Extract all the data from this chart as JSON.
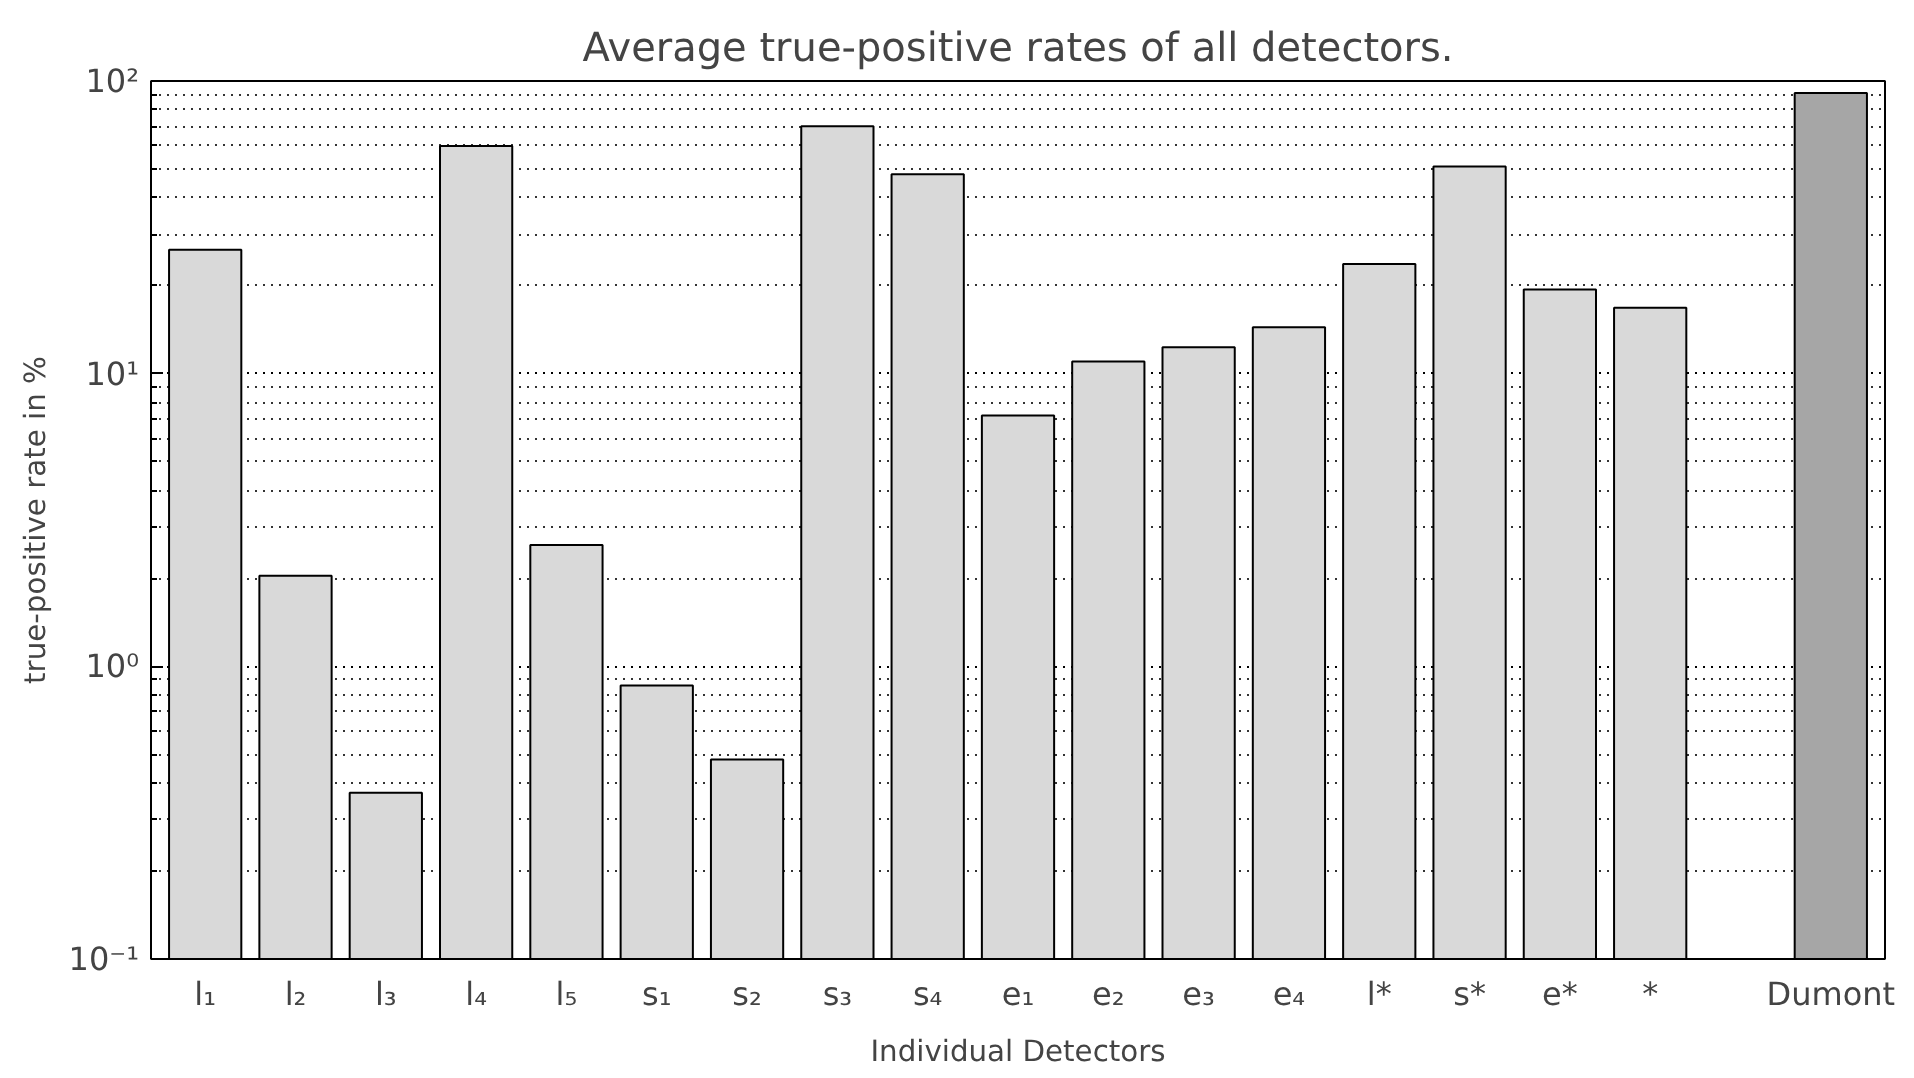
{
  "chart_data": {
    "type": "bar",
    "title": "Average true-positive rates of all detectors.",
    "xlabel": "Individual Detectors",
    "ylabel": "true-positive rate in %",
    "categories": [
      "l₁",
      "l₂",
      "l₃",
      "l₄",
      "l₅",
      "s₁",
      "s₂",
      "s₃",
      "s₄",
      "e₁",
      "e₂",
      "e₃",
      "e₄",
      "l*",
      "s*",
      "e*",
      "*",
      null,
      "Dumont"
    ],
    "values": [
      26.5,
      2.04,
      0.37,
      60,
      2.6,
      0.86,
      0.48,
      70,
      48,
      7.2,
      11,
      12.3,
      14.4,
      23.7,
      51,
      19.4,
      16.8,
      null,
      91
    ],
    "colors": [
      "#d9d9d9",
      "#d9d9d9",
      "#d9d9d9",
      "#d9d9d9",
      "#d9d9d9",
      "#d9d9d9",
      "#d9d9d9",
      "#d9d9d9",
      "#d9d9d9",
      "#d9d9d9",
      "#d9d9d9",
      "#d9d9d9",
      "#d9d9d9",
      "#d9d9d9",
      "#d9d9d9",
      "#d9d9d9",
      "#d9d9d9",
      "#d9d9d9",
      "#a6a6a6"
    ],
    "log": "y",
    "ylim": [
      0.1,
      100
    ],
    "yticks": [
      {
        "value": 0.1,
        "label": "10⁻¹"
      },
      {
        "value": 1,
        "label": "10⁰"
      },
      {
        "value": 10,
        "label": "10¹"
      },
      {
        "value": 100,
        "label": "10²"
      }
    ],
    "grid": "y"
  }
}
